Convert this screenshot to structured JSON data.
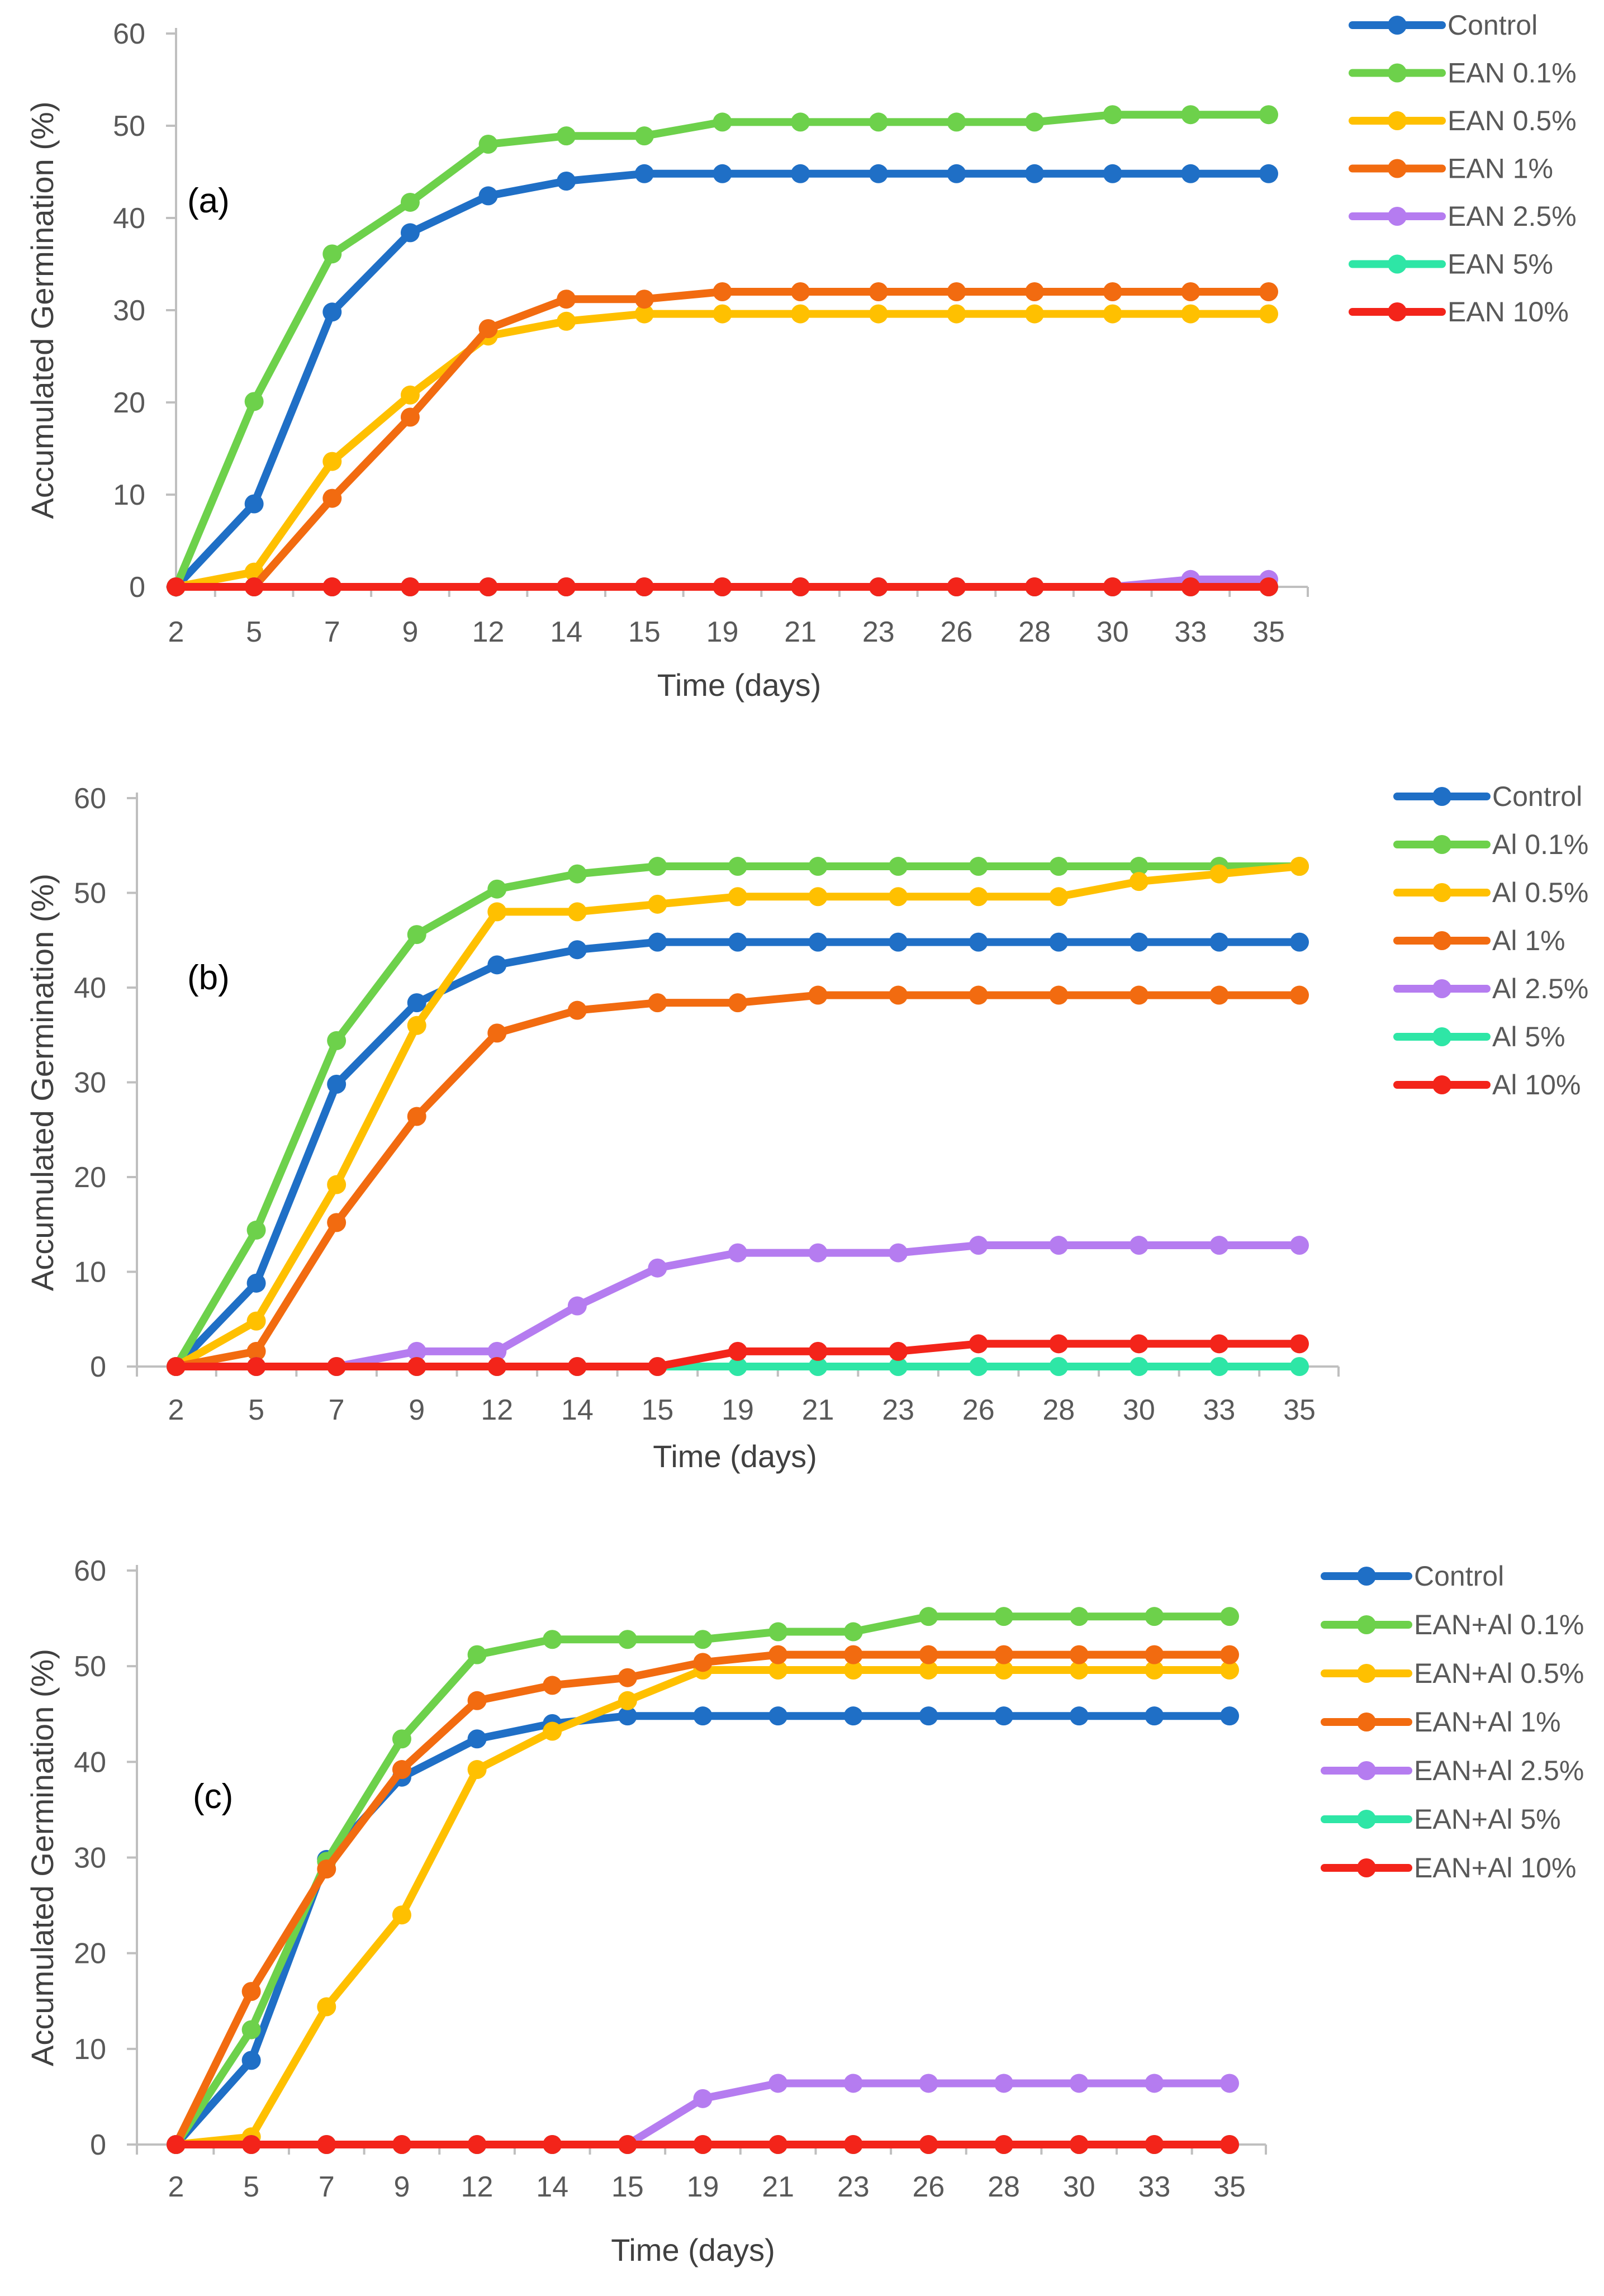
{
  "chart_data": [
    {
      "type": "line",
      "panel_label": "(a)",
      "xlabel": "Time (days)",
      "ylabel": "Accumulated Germination (%)",
      "ylim": [
        0,
        60
      ],
      "yticks": [
        0,
        10,
        20,
        30,
        40,
        50,
        60
      ],
      "categories": [
        "2",
        "5",
        "7",
        "9",
        "12",
        "14",
        "15",
        "19",
        "21",
        "23",
        "26",
        "28",
        "30",
        "33",
        "35"
      ],
      "legend_position": "top-right",
      "series": [
        {
          "name": "Control",
          "color": "#1F6FC6",
          "values": [
            0,
            9,
            29.8,
            38.4,
            42.4,
            44,
            44.8,
            44.8,
            44.8,
            44.8,
            44.8,
            44.8,
            44.8,
            44.8,
            44.8
          ]
        },
        {
          "name": "EAN 0.1%",
          "color": "#6DD14B",
          "values": [
            0,
            20.1,
            36.1,
            41.7,
            48,
            48.9,
            48.9,
            50.4,
            50.4,
            50.4,
            50.4,
            50.4,
            51.2,
            51.2,
            51.2
          ]
        },
        {
          "name": "EAN 0.5%",
          "color": "#FFC000",
          "values": [
            0,
            1.6,
            13.6,
            20.8,
            27.2,
            28.8,
            29.6,
            29.6,
            29.6,
            29.6,
            29.6,
            29.6,
            29.6,
            29.6,
            29.6
          ]
        },
        {
          "name": "EAN 1%",
          "color": "#F26B10",
          "values": [
            0,
            0,
            9.6,
            18.4,
            28,
            31.2,
            31.2,
            32,
            32,
            32,
            32,
            32,
            32,
            32,
            32
          ]
        },
        {
          "name": "EAN 2.5%",
          "color": "#B57CF0",
          "values": [
            0,
            0,
            0,
            0,
            0,
            0,
            0,
            0,
            0,
            0,
            0,
            0,
            0,
            0.8,
            0.8
          ]
        },
        {
          "name": "EAN 5%",
          "color": "#2EE6A6",
          "values": [
            0,
            0,
            0,
            0,
            0,
            0,
            0,
            0,
            0,
            0,
            0,
            0,
            0,
            0,
            0
          ]
        },
        {
          "name": "EAN 10%",
          "color": "#F3241A",
          "values": [
            0,
            0,
            0,
            0,
            0,
            0,
            0,
            0,
            0,
            0,
            0,
            0,
            0,
            0,
            0
          ]
        }
      ]
    },
    {
      "type": "line",
      "panel_label": "(b)",
      "xlabel": "Time (days)",
      "ylabel": "Accumulated Germination (%)",
      "ylim": [
        0,
        60
      ],
      "yticks": [
        0,
        10,
        20,
        30,
        40,
        50,
        60
      ],
      "categories": [
        "2",
        "5",
        "7",
        "9",
        "12",
        "14",
        "15",
        "19",
        "21",
        "23",
        "26",
        "28",
        "30",
        "33",
        "35"
      ],
      "legend_position": "top-right",
      "series": [
        {
          "name": "Control",
          "color": "#1F6FC6",
          "values": [
            0,
            8.8,
            29.8,
            38.4,
            42.4,
            44,
            44.8,
            44.8,
            44.8,
            44.8,
            44.8,
            44.8,
            44.8,
            44.8,
            44.8
          ]
        },
        {
          "name": "Al 0.1%",
          "color": "#6DD14B",
          "values": [
            0,
            14.4,
            34.4,
            45.6,
            50.4,
            52,
            52.8,
            52.8,
            52.8,
            52.8,
            52.8,
            52.8,
            52.8,
            52.8,
            52.8
          ]
        },
        {
          "name": "Al 0.5%",
          "color": "#FFC000",
          "values": [
            0,
            4.8,
            19.2,
            36,
            48,
            48,
            48.8,
            49.6,
            49.6,
            49.6,
            49.6,
            49.6,
            51.2,
            52,
            52.8
          ]
        },
        {
          "name": "Al 1%",
          "color": "#F26B10",
          "values": [
            0,
            1.6,
            15.2,
            26.4,
            35.2,
            37.6,
            38.4,
            38.4,
            39.2,
            39.2,
            39.2,
            39.2,
            39.2,
            39.2,
            39.2
          ]
        },
        {
          "name": "Al 2.5%",
          "color": "#B57CF0",
          "values": [
            0,
            0,
            0,
            1.6,
            1.6,
            6.4,
            10.4,
            12,
            12,
            12,
            12.8,
            12.8,
            12.8,
            12.8,
            12.8
          ]
        },
        {
          "name": "Al 5%",
          "color": "#2EE6A6",
          "values": [
            0,
            0,
            0,
            0,
            0,
            0,
            0,
            0,
            0,
            0,
            0,
            0,
            0,
            0,
            0
          ]
        },
        {
          "name": "Al 10%",
          "color": "#F3241A",
          "values": [
            0,
            0,
            0,
            0,
            0,
            0,
            0,
            1.6,
            1.6,
            1.6,
            2.4,
            2.4,
            2.4,
            2.4,
            2.4
          ]
        }
      ]
    },
    {
      "type": "line",
      "panel_label": "(c)",
      "xlabel": "Time (days)",
      "ylabel": "Accumulated Germination (%)",
      "ylim": [
        0,
        60
      ],
      "yticks": [
        0,
        10,
        20,
        30,
        40,
        50,
        60
      ],
      "categories": [
        "2",
        "5",
        "7",
        "9",
        "12",
        "14",
        "15",
        "19",
        "21",
        "23",
        "26",
        "28",
        "30",
        "33",
        "35"
      ],
      "legend_position": "top-right",
      "series": [
        {
          "name": "Control",
          "color": "#1F6FC6",
          "values": [
            0,
            8.8,
            29.8,
            38.4,
            42.4,
            44,
            44.8,
            44.8,
            44.8,
            44.8,
            44.8,
            44.8,
            44.8,
            44.8,
            44.8
          ]
        },
        {
          "name": "EAN+Al 0.1%",
          "color": "#6DD14B",
          "values": [
            0,
            12,
            29.6,
            42.4,
            51.2,
            52.8,
            52.8,
            52.8,
            53.6,
            53.6,
            55.2,
            55.2,
            55.2,
            55.2,
            55.2
          ]
        },
        {
          "name": "EAN+Al 0.5%",
          "color": "#FFC000",
          "values": [
            0,
            0.8,
            14.4,
            24,
            39.2,
            43.2,
            46.4,
            49.6,
            49.6,
            49.6,
            49.6,
            49.6,
            49.6,
            49.6,
            49.6
          ]
        },
        {
          "name": "EAN+Al 1%",
          "color": "#F26B10",
          "values": [
            0,
            16,
            28.8,
            39.2,
            46.4,
            48,
            48.8,
            50.4,
            51.2,
            51.2,
            51.2,
            51.2,
            51.2,
            51.2,
            51.2
          ]
        },
        {
          "name": "EAN+Al 2.5%",
          "color": "#B57CF0",
          "values": [
            0,
            0,
            0,
            0,
            0,
            0,
            0,
            4.8,
            6.4,
            6.4,
            6.4,
            6.4,
            6.4,
            6.4,
            6.4
          ]
        },
        {
          "name": "EAN+Al 5%",
          "color": "#2EE6A6",
          "values": [
            0,
            0,
            0,
            0,
            0,
            0,
            0,
            0,
            0,
            0,
            0,
            0,
            0,
            0,
            0
          ]
        },
        {
          "name": "EAN+Al 10%",
          "color": "#F3241A",
          "values": [
            0,
            0,
            0,
            0,
            0,
            0,
            0,
            0,
            0,
            0,
            0,
            0,
            0,
            0,
            0
          ]
        }
      ]
    }
  ]
}
